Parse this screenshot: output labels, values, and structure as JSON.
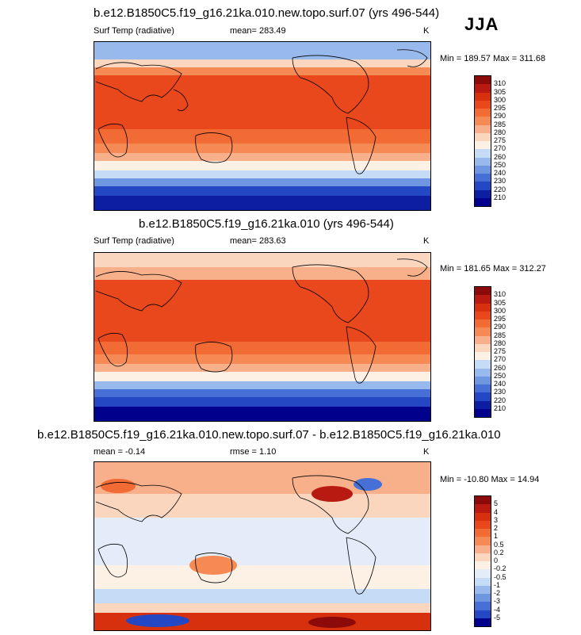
{
  "season": "JJA",
  "units": "K",
  "panels": [
    {
      "id": "panel1",
      "title": "b.e12.B1850C5.f19_g16.21ka.010.new.topo.surf.07 (yrs 496-544)",
      "variable": "Surf Temp (radiative)",
      "mean": "mean= 283.49",
      "minmax": "Min = 189.57 Max = 311.68",
      "colorbar": {
        "labels": [
          "310",
          "305",
          "300",
          "295",
          "290",
          "285",
          "280",
          "275",
          "270",
          "260",
          "250",
          "240",
          "230",
          "220",
          "210"
        ],
        "colors": [
          "#8c0a0a",
          "#b81a12",
          "#d6300f",
          "#e8481b",
          "#f26a34",
          "#f58a55",
          "#f8b08a",
          "#fbd6bf",
          "#fdf1e6",
          "#c6dbf5",
          "#97b9ec",
          "#6e96e1",
          "#4670d5",
          "#2447c3",
          "#0d1ea3",
          "#00008c"
        ]
      }
    },
    {
      "id": "panel2",
      "title": "b.e12.B1850C5.f19_g16.21ka.010 (yrs 496-544)",
      "variable": "Surf Temp (radiative)",
      "mean": "mean= 283.63",
      "minmax": "Min = 181.65 Max = 312.27",
      "colorbar": {
        "labels": [
          "310",
          "305",
          "300",
          "295",
          "290",
          "285",
          "280",
          "275",
          "270",
          "260",
          "250",
          "240",
          "230",
          "220",
          "210"
        ],
        "colors": [
          "#8c0a0a",
          "#b81a12",
          "#d6300f",
          "#e8481b",
          "#f26a34",
          "#f58a55",
          "#f8b08a",
          "#fbd6bf",
          "#fdf1e6",
          "#c6dbf5",
          "#97b9ec",
          "#6e96e1",
          "#4670d5",
          "#2447c3",
          "#0d1ea3",
          "#00008c"
        ]
      }
    },
    {
      "id": "panel3",
      "title": "b.e12.B1850C5.f19_g16.21ka.010.new.topo.surf.07 - b.e12.B1850C5.f19_g16.21ka.010",
      "variable": "",
      "mean": "mean =  -0.14",
      "rmse": "rmse =   1.10",
      "minmax": "Min = -10.80 Max =  14.94",
      "colorbar": {
        "labels": [
          "5",
          "4",
          "3",
          "2",
          "1",
          "0.5",
          "0.2",
          "0",
          "-0.2",
          "-0.5",
          "-1",
          "-2",
          "-3",
          "-4",
          "-5"
        ],
        "colors": [
          "#8c0a0a",
          "#b81a12",
          "#d6300f",
          "#e8481b",
          "#f26a34",
          "#f58a55",
          "#f8b08a",
          "#fbd6bf",
          "#fdf1e6",
          "#e4ecfa",
          "#c6dbf5",
          "#97b9ec",
          "#6e96e1",
          "#4670d5",
          "#2447c3",
          "#00008c"
        ]
      }
    }
  ]
}
